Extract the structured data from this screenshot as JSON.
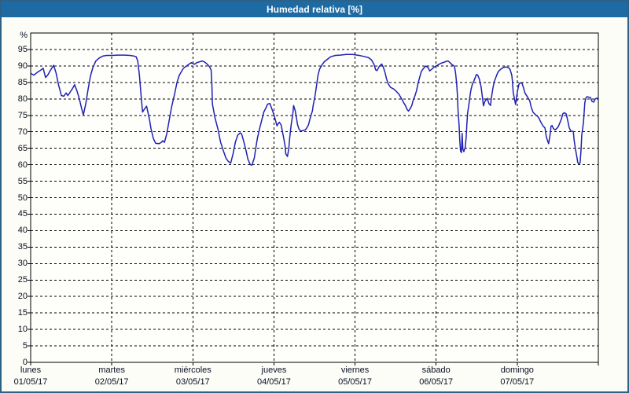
{
  "window": {
    "title": "Humedad relativa [%]"
  },
  "colors": {
    "titlebar_bg": "#1e6ba3",
    "window_border": "#2d6186",
    "page_bg": "#fbfdf6",
    "plot_bg": "#fefefb",
    "plot_border": "#000000",
    "grid": "#000000",
    "line": "#2020b4",
    "text": "#0a0f23",
    "title_text": "#ffffff"
  },
  "chart_data": {
    "type": "line",
    "title": "Humedad relativa [%]",
    "ylabel": "%",
    "y_unit_label": "%",
    "ylim": [
      0,
      100
    ],
    "xlim": [
      0,
      168
    ],
    "x_unit": "hours_from_monday_00",
    "grid": "dashed",
    "legend": "none",
    "y_ticks": [
      0,
      5,
      10,
      15,
      20,
      25,
      30,
      35,
      40,
      45,
      50,
      55,
      60,
      65,
      70,
      75,
      80,
      85,
      90,
      95
    ],
    "day_ticks": [
      {
        "name": "lunes",
        "date": "01/05/17",
        "hour": 0
      },
      {
        "name": "martes",
        "date": "02/05/17",
        "hour": 24
      },
      {
        "name": "miércoles",
        "date": "03/05/17",
        "hour": 48
      },
      {
        "name": "jueves",
        "date": "04/05/17",
        "hour": 72
      },
      {
        "name": "viernes",
        "date": "05/05/17",
        "hour": 96
      },
      {
        "name": "sábado",
        "date": "06/05/17",
        "hour": 120
      },
      {
        "name": "domingo",
        "date": "07/05/17",
        "hour": 144
      }
    ],
    "series": [
      {
        "name": "Humedad relativa",
        "points": [
          [
            0.0,
            87.8
          ],
          [
            0.9,
            87.2
          ],
          [
            1.9,
            88.0
          ],
          [
            2.8,
            88.6
          ],
          [
            3.7,
            89.3
          ],
          [
            4.4,
            86.5
          ],
          [
            5.1,
            87.3
          ],
          [
            5.8,
            88.6
          ],
          [
            6.8,
            90.2
          ],
          [
            7.5,
            88.0
          ],
          [
            8.2,
            84.5
          ],
          [
            9.1,
            81.0
          ],
          [
            9.8,
            80.8
          ],
          [
            10.5,
            81.8
          ],
          [
            11.0,
            81.0
          ],
          [
            11.7,
            82.1
          ],
          [
            12.3,
            83.0
          ],
          [
            13.0,
            84.3
          ],
          [
            13.7,
            82.4
          ],
          [
            14.4,
            80.0
          ],
          [
            15.1,
            77.0
          ],
          [
            15.6,
            75.2
          ],
          [
            16.3,
            78.5
          ],
          [
            17.0,
            83.0
          ],
          [
            17.7,
            87.0
          ],
          [
            18.4,
            89.5
          ],
          [
            19.3,
            91.5
          ],
          [
            20.3,
            92.4
          ],
          [
            21.4,
            93.0
          ],
          [
            22.6,
            93.2
          ],
          [
            24.0,
            93.2
          ],
          [
            25.9,
            93.3
          ],
          [
            27.7,
            93.3
          ],
          [
            29.4,
            93.2
          ],
          [
            30.5,
            93.0
          ],
          [
            31.2,
            92.8
          ],
          [
            31.7,
            91.5
          ],
          [
            32.2,
            87.0
          ],
          [
            32.6,
            82.0
          ],
          [
            33.1,
            76.0
          ],
          [
            33.6,
            76.8
          ],
          [
            34.3,
            77.8
          ],
          [
            34.7,
            76.0
          ],
          [
            35.2,
            73.5
          ],
          [
            35.6,
            71.0
          ],
          [
            36.3,
            68.0
          ],
          [
            37.0,
            66.5
          ],
          [
            38.0,
            66.4
          ],
          [
            38.7,
            66.8
          ],
          [
            39.1,
            67.3
          ],
          [
            39.6,
            66.8
          ],
          [
            40.3,
            69.5
          ],
          [
            41.0,
            73.5
          ],
          [
            41.7,
            77.5
          ],
          [
            42.6,
            81.5
          ],
          [
            43.3,
            85.0
          ],
          [
            44.0,
            87.2
          ],
          [
            45.2,
            89.3
          ],
          [
            46.4,
            90.2
          ],
          [
            47.5,
            91.0
          ],
          [
            48.5,
            90.5
          ],
          [
            49.2,
            91.0
          ],
          [
            50.1,
            91.3
          ],
          [
            50.8,
            91.5
          ],
          [
            51.5,
            91.2
          ],
          [
            52.2,
            90.6
          ],
          [
            52.9,
            89.8
          ],
          [
            53.4,
            88.8
          ],
          [
            53.6,
            85.0
          ],
          [
            53.8,
            78.4
          ],
          [
            54.5,
            74.5
          ],
          [
            55.5,
            70.5
          ],
          [
            56.2,
            66.9
          ],
          [
            57.1,
            64.0
          ],
          [
            57.8,
            62.0
          ],
          [
            58.5,
            61.0
          ],
          [
            59.2,
            60.5
          ],
          [
            59.9,
            63.3
          ],
          [
            60.6,
            66.9
          ],
          [
            61.3,
            69.0
          ],
          [
            62.0,
            69.7
          ],
          [
            62.4,
            69.4
          ],
          [
            63.1,
            66.9
          ],
          [
            63.8,
            64.0
          ],
          [
            64.3,
            61.7
          ],
          [
            65.0,
            60.0
          ],
          [
            65.5,
            59.9
          ],
          [
            66.2,
            62.1
          ],
          [
            66.6,
            64.9
          ],
          [
            67.1,
            68.1
          ],
          [
            67.8,
            71.2
          ],
          [
            68.5,
            74.0
          ],
          [
            69.0,
            76.0
          ],
          [
            69.7,
            77.4
          ],
          [
            70.1,
            78.4
          ],
          [
            70.8,
            78.6
          ],
          [
            71.3,
            77.2
          ],
          [
            72.0,
            75.2
          ],
          [
            72.5,
            73.3
          ],
          [
            72.9,
            71.8
          ],
          [
            73.2,
            72.4
          ],
          [
            73.6,
            72.9
          ],
          [
            74.1,
            72.1
          ],
          [
            74.3,
            71.2
          ],
          [
            74.8,
            68.5
          ],
          [
            75.3,
            65.7
          ],
          [
            75.5,
            63.3
          ],
          [
            76.0,
            62.5
          ],
          [
            76.4,
            64.9
          ],
          [
            76.7,
            68.5
          ],
          [
            77.1,
            72.1
          ],
          [
            77.6,
            75.6
          ],
          [
            77.8,
            78.0
          ],
          [
            78.3,
            76.4
          ],
          [
            78.7,
            74.0
          ],
          [
            79.0,
            72.1
          ],
          [
            79.4,
            70.9
          ],
          [
            79.9,
            70.2
          ],
          [
            80.6,
            70.4
          ],
          [
            81.3,
            70.6
          ],
          [
            81.8,
            71.3
          ],
          [
            82.2,
            72.1
          ],
          [
            82.5,
            73.3
          ],
          [
            82.9,
            74.8
          ],
          [
            83.4,
            76.4
          ],
          [
            83.6,
            78.0
          ],
          [
            84.1,
            80.5
          ],
          [
            84.6,
            84.0
          ],
          [
            85.0,
            87.0
          ],
          [
            85.5,
            89.0
          ],
          [
            86.2,
            90.3
          ],
          [
            86.9,
            91.3
          ],
          [
            87.8,
            92.0
          ],
          [
            88.8,
            92.8
          ],
          [
            90.2,
            93.2
          ],
          [
            91.6,
            93.3
          ],
          [
            93.4,
            93.5
          ],
          [
            95.3,
            93.5
          ],
          [
            96.0,
            93.4
          ],
          [
            97.2,
            93.2
          ],
          [
            98.1,
            93.0
          ],
          [
            99.0,
            92.8
          ],
          [
            100.0,
            92.5
          ],
          [
            100.9,
            91.8
          ],
          [
            101.6,
            90.5
          ],
          [
            102.1,
            88.8
          ],
          [
            102.5,
            88.6
          ],
          [
            103.2,
            89.9
          ],
          [
            103.9,
            90.6
          ],
          [
            104.4,
            89.5
          ],
          [
            104.9,
            87.9
          ],
          [
            105.3,
            86.2
          ],
          [
            105.8,
            84.6
          ],
          [
            106.5,
            83.5
          ],
          [
            107.4,
            83.0
          ],
          [
            108.1,
            82.4
          ],
          [
            109.0,
            81.4
          ],
          [
            109.7,
            80.2
          ],
          [
            110.4,
            78.8
          ],
          [
            110.9,
            78.0
          ],
          [
            111.4,
            76.8
          ],
          [
            111.8,
            76.3
          ],
          [
            112.3,
            77.0
          ],
          [
            112.8,
            78.0
          ],
          [
            113.2,
            79.6
          ],
          [
            113.7,
            80.8
          ],
          [
            114.2,
            82.5
          ],
          [
            114.6,
            84.5
          ],
          [
            115.1,
            86.5
          ],
          [
            115.6,
            88.3
          ],
          [
            116.3,
            89.3
          ],
          [
            117.0,
            90.0
          ],
          [
            117.7,
            89.4
          ],
          [
            118.1,
            88.5
          ],
          [
            118.8,
            89.1
          ],
          [
            119.3,
            89.6
          ],
          [
            120.0,
            90.0
          ],
          [
            120.7,
            90.4
          ],
          [
            121.4,
            90.8
          ],
          [
            122.3,
            91.1
          ],
          [
            123.0,
            91.4
          ],
          [
            123.5,
            91.5
          ],
          [
            124.0,
            91.1
          ],
          [
            124.7,
            90.4
          ],
          [
            125.4,
            89.9
          ],
          [
            125.6,
            88.8
          ],
          [
            125.8,
            87.5
          ],
          [
            126.1,
            84.4
          ],
          [
            126.3,
            81.0
          ],
          [
            126.5,
            76.4
          ],
          [
            126.8,
            72.0
          ],
          [
            127.0,
            67.3
          ],
          [
            127.2,
            64.2
          ],
          [
            127.5,
            63.7
          ],
          [
            127.7,
            69.5
          ],
          [
            127.9,
            64.8
          ],
          [
            128.2,
            64.0
          ],
          [
            128.6,
            65.3
          ],
          [
            128.9,
            68.6
          ],
          [
            129.1,
            72.4
          ],
          [
            129.3,
            75.6
          ],
          [
            129.8,
            79.0
          ],
          [
            130.0,
            80.8
          ],
          [
            130.3,
            82.8
          ],
          [
            130.7,
            84.4
          ],
          [
            131.2,
            85.5
          ],
          [
            131.9,
            87.4
          ],
          [
            132.3,
            87.2
          ],
          [
            132.8,
            86.0
          ],
          [
            133.3,
            83.6
          ],
          [
            133.7,
            80.4
          ],
          [
            134.0,
            77.9
          ],
          [
            134.4,
            79.2
          ],
          [
            135.1,
            80.2
          ],
          [
            135.6,
            78.6
          ],
          [
            136.1,
            78.0
          ],
          [
            136.3,
            80.0
          ],
          [
            136.8,
            83.2
          ],
          [
            137.2,
            85.2
          ],
          [
            137.7,
            86.6
          ],
          [
            138.2,
            87.9
          ],
          [
            138.6,
            88.5
          ],
          [
            139.3,
            89.2
          ],
          [
            140.0,
            89.6
          ],
          [
            140.7,
            89.7
          ],
          [
            141.4,
            89.5
          ],
          [
            141.9,
            88.9
          ],
          [
            142.4,
            87.1
          ],
          [
            142.6,
            85.2
          ],
          [
            142.8,
            82.0
          ],
          [
            143.3,
            79.4
          ],
          [
            143.5,
            78.3
          ],
          [
            144.0,
            82.0
          ],
          [
            144.5,
            84.4
          ],
          [
            144.9,
            84.9
          ],
          [
            145.4,
            84.8
          ],
          [
            145.9,
            83.2
          ],
          [
            146.3,
            81.8
          ],
          [
            147.0,
            80.6
          ],
          [
            147.7,
            79.4
          ],
          [
            148.2,
            77.2
          ],
          [
            148.7,
            75.9
          ],
          [
            149.4,
            75.2
          ],
          [
            150.1,
            74.6
          ],
          [
            150.5,
            74.0
          ],
          [
            151.0,
            72.9
          ],
          [
            151.7,
            71.7
          ],
          [
            152.2,
            71.2
          ],
          [
            152.6,
            68.5
          ],
          [
            153.1,
            66.9
          ],
          [
            153.3,
            66.4
          ],
          [
            153.8,
            69.7
          ],
          [
            154.0,
            71.7
          ],
          [
            154.3,
            71.9
          ],
          [
            154.7,
            71.0
          ],
          [
            155.2,
            70.6
          ],
          [
            155.7,
            71.0
          ],
          [
            156.1,
            71.5
          ],
          [
            156.6,
            72.7
          ],
          [
            157.1,
            74.0
          ],
          [
            157.5,
            75.5
          ],
          [
            158.0,
            75.8
          ],
          [
            158.5,
            75.4
          ],
          [
            158.9,
            73.6
          ],
          [
            159.4,
            71.2
          ],
          [
            159.9,
            70.2
          ],
          [
            160.6,
            70.1
          ],
          [
            160.8,
            67.7
          ],
          [
            161.2,
            64.9
          ],
          [
            161.7,
            62.1
          ],
          [
            161.9,
            60.7
          ],
          [
            162.2,
            60.3
          ],
          [
            162.6,
            60.5
          ],
          [
            162.9,
            64.9
          ],
          [
            163.1,
            68.9
          ],
          [
            163.6,
            72.9
          ],
          [
            163.8,
            76.0
          ],
          [
            164.0,
            78.8
          ],
          [
            164.3,
            80.2
          ],
          [
            164.7,
            80.7
          ],
          [
            165.2,
            80.5
          ],
          [
            165.7,
            80.4
          ],
          [
            166.1,
            79.3
          ],
          [
            166.6,
            79.0
          ],
          [
            167.1,
            80.0
          ],
          [
            167.5,
            80.2
          ],
          [
            168.0,
            80.2
          ]
        ]
      }
    ]
  }
}
